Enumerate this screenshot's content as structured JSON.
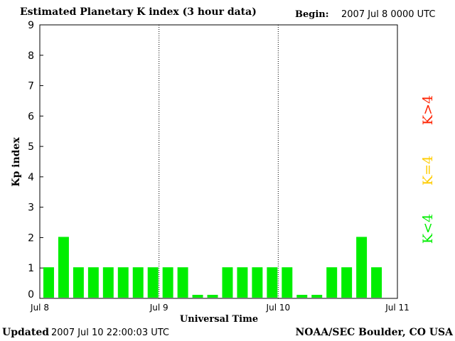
{
  "header": {
    "title": "Estimated Planetary K index (3 hour data)",
    "begin_label": "Begin:",
    "begin_value": "2007 Jul 8 0000 UTC"
  },
  "footer": {
    "updated_label": "Updated",
    "updated_value": "2007 Jul 10 22:00:03 UTC",
    "source": "NOAA/SEC Boulder, CO USA"
  },
  "legend": [
    {
      "text": "K>4",
      "color": "#ff2200"
    },
    {
      "text": "K=4",
      "color": "#ffcc00"
    },
    {
      "text": "K<4",
      "color": "#00ee00"
    }
  ],
  "chart_data": {
    "type": "bar",
    "title": "Estimated Planetary K index (3 hour data)",
    "xlabel": "Universal Time",
    "ylabel": "Kp index",
    "ylim": [
      0,
      9
    ],
    "yticks": [
      "0",
      "1",
      "2",
      "3",
      "4",
      "5",
      "6",
      "7",
      "8",
      "9"
    ],
    "xticks": [
      "Jul 8",
      "Jul 9",
      "Jul 10",
      "Jul 11"
    ],
    "interval_hours": 3,
    "values": [
      1,
      2,
      1,
      1,
      1,
      1,
      1,
      1,
      1,
      1,
      0,
      0,
      1,
      1,
      1,
      1,
      1,
      0,
      0,
      1,
      1,
      2,
      1
    ],
    "bar_color": "#00ee00",
    "day_separators": "dotted"
  }
}
